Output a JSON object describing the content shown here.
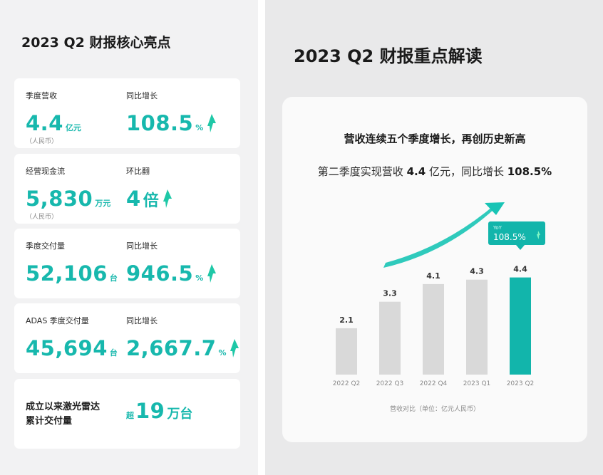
{
  "left": {
    "title": "2023 Q2 财报核心亮点",
    "cards": [
      {
        "left_label": "季度营收",
        "left_value": "4.4",
        "left_unit": "亿元",
        "left_sub": "（人民币）",
        "right_label": "同比增长",
        "right_value": "108.5",
        "right_unit": "%"
      },
      {
        "left_label": "经营现金流",
        "left_value": "5,830",
        "left_unit": "万元",
        "left_sub": "（人民币）",
        "right_label": "环比翻",
        "right_value": "4",
        "right_unit": "倍"
      },
      {
        "left_label": "季度交付量",
        "left_value": "52,106",
        "left_unit": "台",
        "right_label": "同比增长",
        "right_value": "946.5",
        "right_unit": "%"
      },
      {
        "left_label": "ADAS 季度交付量",
        "left_value": "45,694",
        "left_unit": "台",
        "right_label": "同比增长",
        "right_value": "2,667.7",
        "right_unit": "%"
      }
    ],
    "last_card": {
      "label_line1": "成立以来激光雷达",
      "label_line2": "累计交付量",
      "prefix": "超",
      "value": "19",
      "unit": "万台"
    }
  },
  "right": {
    "title": "2023 Q2 财报重点解读",
    "headline": "营收连续五个季度增长，再创历史新高",
    "sub_prefix": "第二季度实现营收",
    "sub_value1": "4.4",
    "sub_mid": "亿元，同比增长",
    "sub_value2": "108.5%"
  },
  "chart_data": {
    "type": "bar",
    "categories": [
      "2022 Q2",
      "2022 Q3",
      "2022 Q4",
      "2023 Q1",
      "2023 Q2"
    ],
    "values": [
      2.1,
      3.3,
      4.1,
      4.3,
      4.4
    ],
    "value_labels": [
      "2.1",
      "3.3",
      "4.1",
      "4.3",
      "4.4"
    ],
    "caption": "营收对比（单位：亿元人民币）",
    "callout": {
      "label": "YoY",
      "value": "108.5%"
    },
    "bar_color": "#d9d9d9",
    "highlight_color": "#12b5ab",
    "accent_color": "#18c4b5"
  }
}
